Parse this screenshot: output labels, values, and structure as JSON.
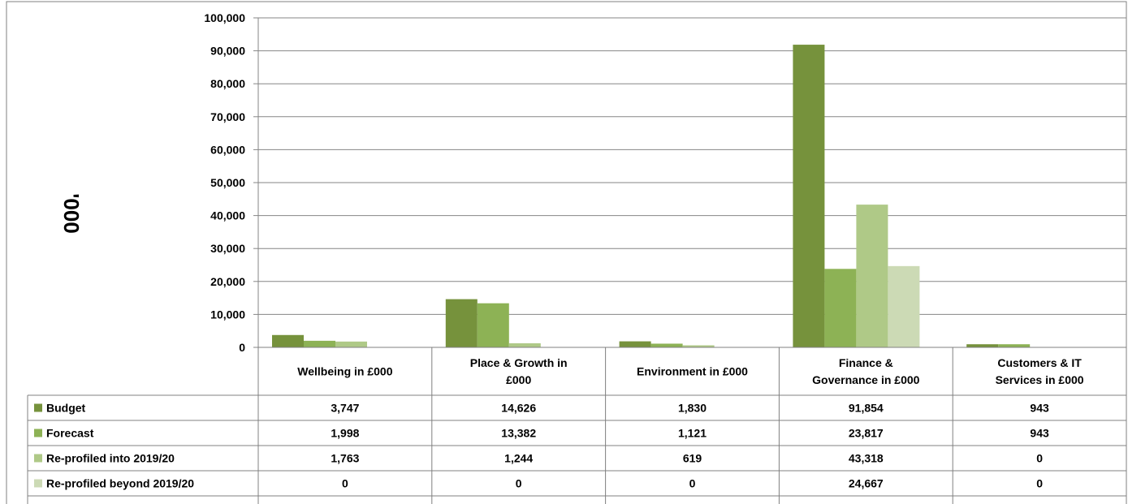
{
  "chart_data": {
    "type": "bar",
    "title": "",
    "ylabel": "'000",
    "xlabel": "",
    "ylim": [
      0,
      100000
    ],
    "yticks": [
      0,
      10000,
      20000,
      30000,
      40000,
      50000,
      60000,
      70000,
      80000,
      90000,
      100000
    ],
    "ytick_labels": [
      "0",
      "10,000",
      "20,000",
      "30,000",
      "40,000",
      "50,000",
      "60,000",
      "70,000",
      "80,000",
      "90,000",
      "100,000"
    ],
    "grid": true,
    "legend": "data-table-left",
    "categories": [
      "Wellbeing in £000",
      "Place & Growth in £000",
      "Environment in £000",
      "Finance & Governance in £000",
      "Customers & IT Services in £000"
    ],
    "category_lines": [
      [
        "Wellbeing in £000"
      ],
      [
        "Place & Growth in",
        "£000"
      ],
      [
        "Environment in £000"
      ],
      [
        "Finance &",
        "Governance in £000"
      ],
      [
        "Customers & IT",
        "Services in £000"
      ]
    ],
    "series": [
      {
        "name": "Budget",
        "color": "#76923c",
        "values": [
          3747,
          14626,
          1830,
          91854,
          943
        ],
        "labels": [
          "3,747",
          "14,626",
          "1,830",
          "91,854",
          "943"
        ]
      },
      {
        "name": "Forecast",
        "color": "#8db255",
        "values": [
          1998,
          13382,
          1121,
          23817,
          943
        ],
        "labels": [
          "1,998",
          "13,382",
          "1,121",
          "23,817",
          "943"
        ]
      },
      {
        "name": "Re-profiled into 2019/20",
        "color": "#afc987",
        "values": [
          1763,
          1244,
          619,
          43318,
          0
        ],
        "labels": [
          "1,763",
          "1,244",
          "619",
          "43,318",
          "0"
        ]
      },
      {
        "name": "Re-profiled beyond 2019/20",
        "color": "#ccdab5",
        "values": [
          0,
          0,
          0,
          24667,
          0
        ],
        "labels": [
          "0",
          "0",
          "0",
          "24,667",
          "0"
        ]
      }
    ]
  }
}
